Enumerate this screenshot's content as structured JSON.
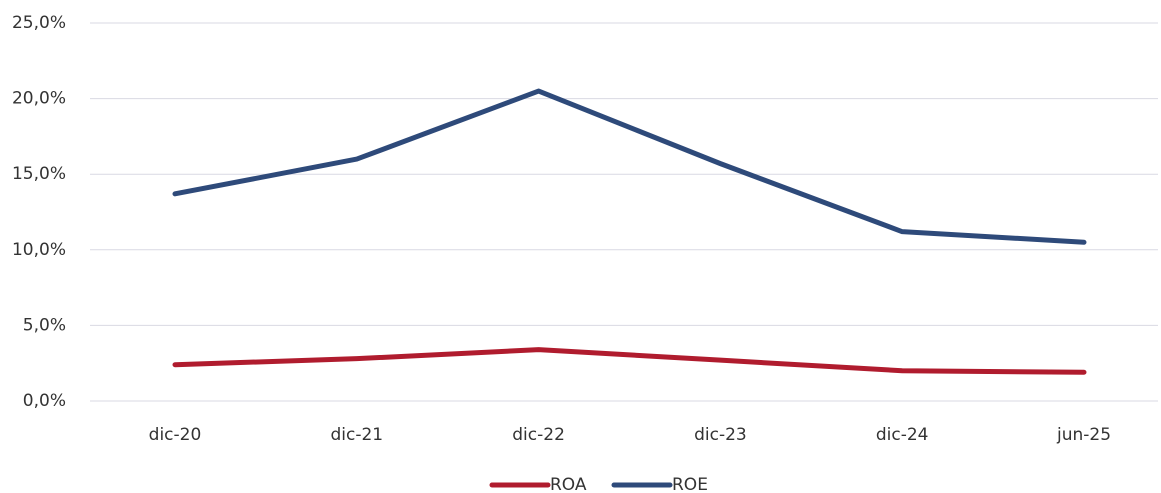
{
  "chart_data": {
    "type": "line",
    "categories": [
      "dic-20",
      "dic-21",
      "dic-22",
      "dic-23",
      "dic-24",
      "jun-25"
    ],
    "series": [
      {
        "name": "ROA",
        "color": "#b01c2e",
        "values": [
          2.4,
          2.8,
          3.4,
          2.7,
          2.0,
          1.9
        ]
      },
      {
        "name": "ROE",
        "color": "#2e4a7a",
        "values": [
          13.7,
          16.0,
          20.5,
          15.7,
          11.2,
          10.5
        ]
      }
    ],
    "ylim": [
      0,
      25
    ],
    "yticks": [
      {
        "value": 0,
        "label": "0,0%"
      },
      {
        "value": 5,
        "label": "5,0%"
      },
      {
        "value": 10,
        "label": "10,0%"
      },
      {
        "value": 15,
        "label": "15,0%"
      },
      {
        "value": 20,
        "label": "20,0%"
      },
      {
        "value": 25,
        "label": "25,0%"
      }
    ],
    "grid": true,
    "legend": "bottom"
  }
}
